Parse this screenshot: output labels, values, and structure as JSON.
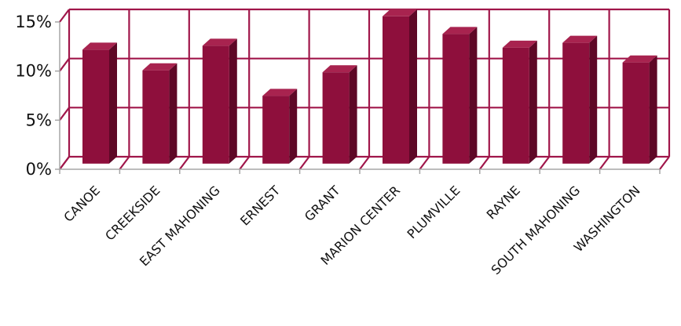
{
  "chart_data": {
    "type": "bar",
    "categories": [
      "CANOE",
      "CREEKSIDE",
      "EAST MAHONING",
      "ERNEST",
      "GRANT",
      "MARION CENTER",
      "PLUMVILLE",
      "RAYNE",
      "SOUTH MAHONING",
      "WASHINGTON"
    ],
    "values": [
      11.6,
      9.5,
      12.0,
      6.9,
      9.3,
      15.0,
      13.2,
      11.8,
      12.3,
      10.3
    ],
    "yticks": [
      "0%",
      "5%",
      "10%",
      "15%"
    ],
    "ylim": [
      0,
      15
    ],
    "grid": true,
    "legend": "none",
    "colors": {
      "bar_front": "#8e0f3c",
      "bar_side": "#5e0826",
      "bar_top": "#a8234f",
      "grid": "#a0164a",
      "axis": "#a6a6a6"
    }
  }
}
